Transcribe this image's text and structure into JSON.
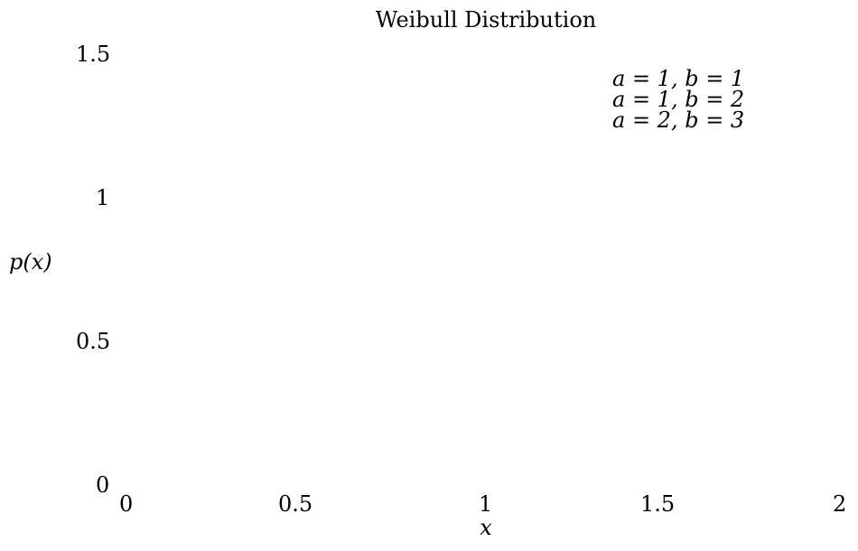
{
  "chart_data": {
    "type": "line",
    "title": "Weibull Distribution",
    "xlabel": "x",
    "ylabel": "p(x)",
    "xlim": [
      0,
      2
    ],
    "ylim": [
      0,
      1.5
    ],
    "x_ticks": [
      "0",
      "0.5",
      "1",
      "1.5",
      "2"
    ],
    "y_ticks": [
      "0",
      "0.5",
      "1",
      "1.5"
    ],
    "grid": false,
    "legend_position": "top-right",
    "series": [
      {
        "name": "a = 1, b = 1",
        "x": [],
        "y": []
      },
      {
        "name": "a = 1, b = 2",
        "x": [],
        "y": []
      },
      {
        "name": "a = 2, b = 3",
        "x": [],
        "y": []
      }
    ]
  }
}
